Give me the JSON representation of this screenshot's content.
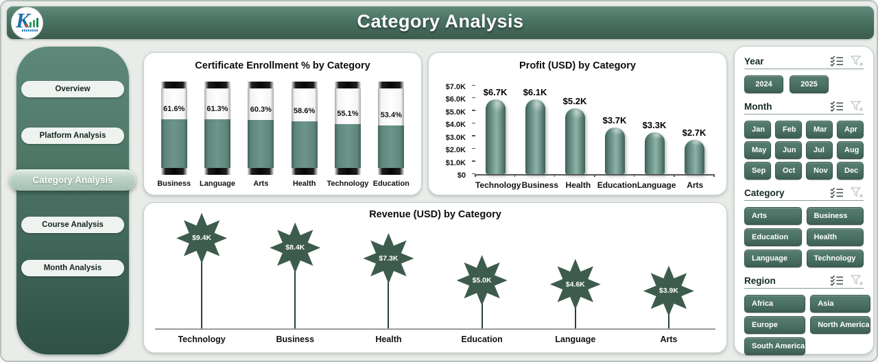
{
  "header": {
    "title": "Category Analysis",
    "logo_letter": "K"
  },
  "sidebar": {
    "items": [
      {
        "label": "Overview",
        "active": false
      },
      {
        "label": "Platform Analysis",
        "active": false
      },
      {
        "label": "Category Analysis",
        "active": true
      },
      {
        "label": "Course Analysis",
        "active": false
      },
      {
        "label": "Month Analysis",
        "active": false
      }
    ]
  },
  "chart_data": [
    {
      "type": "bar",
      "variant": "thermometer",
      "title": "Certificate Enrollment % by Category",
      "categories": [
        "Business",
        "Language",
        "Arts",
        "Health",
        "Technology",
        "Education"
      ],
      "values": [
        61.6,
        61.3,
        60.3,
        58.6,
        55.1,
        53.4
      ],
      "value_labels": [
        "61.6%",
        "61.3%",
        "60.3%",
        "58.6%",
        "55.1%",
        "53.4%"
      ],
      "ylabel": "Certificate Enrollment %",
      "ylim": [
        0,
        100
      ],
      "grid": false,
      "legend": false
    },
    {
      "type": "bar",
      "variant": "rounded-cylinder",
      "title": "Profit (USD) by Category",
      "categories": [
        "Technology",
        "Business",
        "Health",
        "Education",
        "Language",
        "Arts"
      ],
      "values": [
        6700,
        6100,
        5200,
        3700,
        3300,
        2700
      ],
      "value_labels": [
        "$6.7K",
        "$6.1K",
        "$5.2K",
        "$3.7K",
        "$3.3K",
        "$2.7K"
      ],
      "yticks": [
        "$0",
        "$1.0K",
        "$2.0K",
        "$3.0K",
        "$4.0K",
        "$5.0K",
        "$6.0K",
        "$7.0K"
      ],
      "ytick_values": [
        0,
        1000,
        2000,
        3000,
        4000,
        5000,
        6000,
        7000
      ],
      "ylabel": "Profit (USD)",
      "ylim": [
        0,
        7000
      ],
      "grid": false,
      "legend": false
    },
    {
      "type": "lollipop-star",
      "title": "Revenue (USD) by Category",
      "categories": [
        "Technology",
        "Business",
        "Health",
        "Education",
        "Language",
        "Arts"
      ],
      "values": [
        9400,
        8400,
        7300,
        5000,
        4600,
        3900
      ],
      "value_labels": [
        "$9.4K",
        "$8.4K",
        "$7.3K",
        "$5.0K",
        "$4.6K",
        "$3.9K"
      ],
      "ylabel": "Revenue (USD)",
      "ylim": [
        0,
        10000
      ],
      "grid": false,
      "legend": false
    }
  ],
  "filters": {
    "sections": [
      {
        "id": "year",
        "title": "Year",
        "icons": [
          "multi-select-icon",
          "clear-filter-icon"
        ],
        "options": [
          "2024",
          "2025"
        ]
      },
      {
        "id": "month",
        "title": "Month",
        "icons": [
          "multi-select-icon",
          "clear-filter-icon"
        ],
        "options": [
          "Jan",
          "Feb",
          "Mar",
          "Apr",
          "May",
          "Jun",
          "Jul",
          "Aug",
          "Sep",
          "Oct",
          "Nov",
          "Dec"
        ]
      },
      {
        "id": "category",
        "title": "Category",
        "icons": [
          "multi-select-icon",
          "clear-filter-icon"
        ],
        "options": [
          "Arts",
          "Business",
          "Education",
          "Health",
          "Language",
          "Technology"
        ]
      },
      {
        "id": "region",
        "title": "Region",
        "icons": [
          "multi-select-icon",
          "clear-filter-icon"
        ],
        "options": [
          "Africa",
          "Asia",
          "Europe",
          "North America",
          "South America"
        ]
      }
    ]
  },
  "colors": {
    "header_green_top": "#618a7b",
    "header_green_bottom": "#3a5c4e",
    "sidebar_green_top": "#5e897a",
    "sidebar_green_bottom": "#2f5146",
    "active_nav_pill": "#b0cabc",
    "bar_green": "#64897f",
    "star_green": "#3d5c4d",
    "filter_button_green": "#4a7163",
    "page_background": "#e9ece9",
    "panel_background": "#ffffff"
  }
}
